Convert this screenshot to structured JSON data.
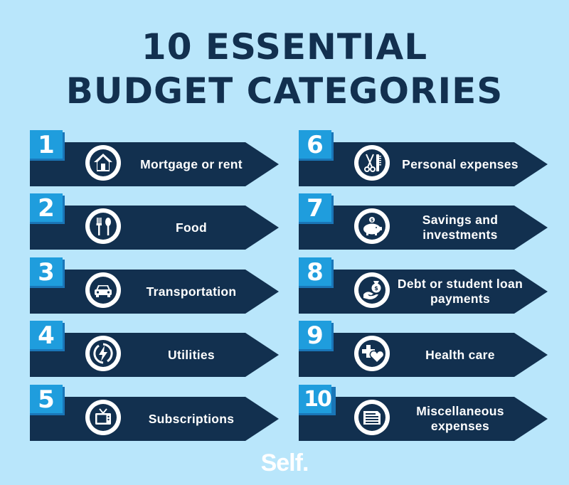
{
  "title": {
    "line1": "10 ESSENTIAL",
    "line2": "BUDGET CATEGORIES"
  },
  "colors": {
    "background": "#b9e6fb",
    "arrow": "#12304f",
    "badge": "#1f9ddd",
    "badge_shadow": "#1a76b8",
    "text": "#ffffff"
  },
  "categories": [
    {
      "number": "1",
      "label": "Mortgage or rent",
      "icon": "house-icon"
    },
    {
      "number": "2",
      "label": "Food",
      "icon": "fork-spoon-icon"
    },
    {
      "number": "3",
      "label": "Transportation",
      "icon": "car-icon"
    },
    {
      "number": "4",
      "label": "Utilities",
      "icon": "lightning-icon"
    },
    {
      "number": "5",
      "label": "Subscriptions",
      "icon": "tv-icon"
    },
    {
      "number": "6",
      "label": "Personal expenses",
      "icon": "scissors-comb-icon"
    },
    {
      "number": "7",
      "label": "Savings and investments",
      "icon": "piggy-bank-icon"
    },
    {
      "number": "8",
      "label": "Debt or student loan payments",
      "icon": "money-bag-hand-icon"
    },
    {
      "number": "9",
      "label": "Health care",
      "icon": "cross-heart-icon"
    },
    {
      "number": "10",
      "label": "Miscellaneous expenses",
      "icon": "document-icon"
    }
  ],
  "logo": {
    "text": "Self",
    "dot": "."
  }
}
